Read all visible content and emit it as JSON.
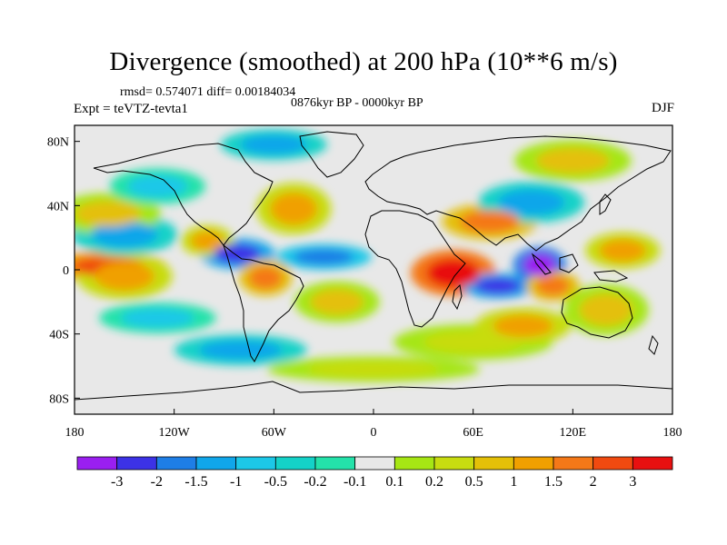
{
  "chart_data": {
    "type": "heatmap",
    "title": "Divergence (smoothed) at 200 hPa (10**6 m/s)",
    "stats": "rmsd= 0.574071 diff= 0.00184034",
    "period": "0876kyr BP - 0000kyr BP",
    "experiment": "Expt = teVTZ-tevta1",
    "season": "DJF",
    "x_range": [
      -180,
      180
    ],
    "y_range": [
      -90,
      90
    ],
    "x_ticks": [
      {
        "value": -180,
        "label": "180"
      },
      {
        "value": -120,
        "label": "120W"
      },
      {
        "value": -60,
        "label": "60W"
      },
      {
        "value": 0,
        "label": "0"
      },
      {
        "value": 60,
        "label": "60E"
      },
      {
        "value": 120,
        "label": "120E"
      },
      {
        "value": 180,
        "label": "180"
      }
    ],
    "y_ticks": [
      {
        "value": 80,
        "label": "80N"
      },
      {
        "value": 40,
        "label": "40N"
      },
      {
        "value": 0,
        "label": "0"
      },
      {
        "value": -40,
        "label": "40S"
      },
      {
        "value": -80,
        "label": "80S"
      }
    ],
    "colorbar": {
      "colors": [
        "#9a1ff0",
        "#3c32e6",
        "#1e7ee6",
        "#10a6ea",
        "#1cc8e8",
        "#14d2c8",
        "#24e2aa",
        "#e8e8e8",
        "#a6e614",
        "#c8dc10",
        "#e4c008",
        "#f0a000",
        "#f47818",
        "#f04a10",
        "#e81010"
      ],
      "labels": [
        "-3",
        "-2",
        "-1.5",
        "-1",
        "-0.5",
        "-0.2",
        "-0.1",
        "0.1",
        "0.2",
        "0.5",
        "1",
        "1.5",
        "2",
        "3"
      ]
    },
    "features": [
      {
        "name": "central-pacific-convergence-band",
        "lon": -160,
        "lat": 2,
        "rx": 22,
        "ry": 6,
        "level": 13
      },
      {
        "name": "central-pacific-divergence",
        "lon": -150,
        "lat": -4,
        "rx": 18,
        "ry": 9,
        "level": 11
      },
      {
        "name": "east-pacific-convergence",
        "lon": -150,
        "lat": 22,
        "rx": 20,
        "ry": 8,
        "level": 3
      },
      {
        "name": "north-pacific-divergence",
        "lon": -160,
        "lat": 35,
        "rx": 20,
        "ry": 8,
        "level": 10
      },
      {
        "name": "north-pacific-convergence",
        "lon": -130,
        "lat": 52,
        "rx": 18,
        "ry": 7,
        "level": 4
      },
      {
        "name": "caribbean-convergence",
        "lon": -82,
        "lat": 10,
        "rx": 14,
        "ry": 6,
        "level": 1
      },
      {
        "name": "mexico-divergence",
        "lon": -100,
        "lat": 18,
        "rx": 10,
        "ry": 6,
        "level": 11
      },
      {
        "name": "amazon-divergence",
        "lon": -65,
        "lat": -5,
        "rx": 10,
        "ry": 7,
        "level": 12
      },
      {
        "name": "atlantic-convergence",
        "lon": -30,
        "lat": 8,
        "rx": 18,
        "ry": 5,
        "level": 2
      },
      {
        "name": "south-atlantic-divergence",
        "lon": -22,
        "lat": -20,
        "rx": 16,
        "ry": 8,
        "level": 10
      },
      {
        "name": "north-atlantic-divergence",
        "lon": -48,
        "lat": 38,
        "rx": 14,
        "ry": 10,
        "level": 11
      },
      {
        "name": "arctic-convergence",
        "lon": -60,
        "lat": 78,
        "rx": 20,
        "ry": 6,
        "level": 3
      },
      {
        "name": "east-africa-divergence",
        "lon": 48,
        "lat": -2,
        "rx": 16,
        "ry": 9,
        "level": 14
      },
      {
        "name": "indian-ocean-convergence",
        "lon": 75,
        "lat": -10,
        "rx": 14,
        "ry": 5,
        "level": 1
      },
      {
        "name": "maritime-continent-convergence",
        "lon": 100,
        "lat": 3,
        "rx": 10,
        "ry": 7,
        "level": 0
      },
      {
        "name": "borneo-divergence",
        "lon": 108,
        "lat": -10,
        "rx": 10,
        "ry": 6,
        "level": 12
      },
      {
        "name": "tibet-divergence",
        "lon": 70,
        "lat": 30,
        "rx": 18,
        "ry": 7,
        "level": 12
      },
      {
        "name": "asia-convergence",
        "lon": 95,
        "lat": 42,
        "rx": 20,
        "ry": 8,
        "level": 3
      },
      {
        "name": "west-pacific-divergence",
        "lon": 150,
        "lat": 12,
        "rx": 14,
        "ry": 7,
        "level": 11
      },
      {
        "name": "siberia-divergence",
        "lon": 120,
        "lat": 68,
        "rx": 22,
        "ry": 8,
        "level": 10
      },
      {
        "name": "south-pacific-convergence",
        "lon": -130,
        "lat": -30,
        "rx": 22,
        "ry": 6,
        "level": 4
      },
      {
        "name": "southern-ocean-divergence",
        "lon": 60,
        "lat": -45,
        "rx": 30,
        "ry": 7,
        "level": 9
      },
      {
        "name": "southern-ocean-convergence",
        "lon": -80,
        "lat": -50,
        "rx": 25,
        "ry": 6,
        "level": 3
      },
      {
        "name": "australia-divergence",
        "lon": 140,
        "lat": -25,
        "rx": 16,
        "ry": 10,
        "level": 10
      },
      {
        "name": "south-indian-divergence",
        "lon": 90,
        "lat": -35,
        "rx": 18,
        "ry": 7,
        "level": 11
      },
      {
        "name": "antarctic-divergence",
        "lon": 0,
        "lat": -62,
        "rx": 40,
        "ry": 5,
        "level": 9
      }
    ]
  }
}
